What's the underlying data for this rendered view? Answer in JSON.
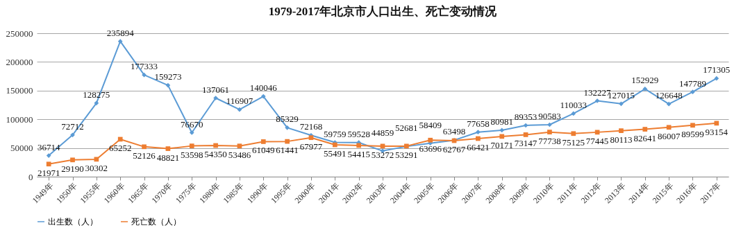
{
  "chart_data": {
    "type": "line",
    "title": "1979-2017年北京市人口出生、死亡变动情况",
    "categories": [
      "1949年",
      "1950年",
      "1955年",
      "1960年",
      "1965年",
      "1970年",
      "1975年",
      "1980年",
      "1985年",
      "1990年",
      "1995年",
      "2000年",
      "2001年",
      "2002年",
      "2003年",
      "2004年",
      "2005年",
      "2006年",
      "2007年",
      "2008年",
      "2009年",
      "2010年",
      "2011年",
      "2012年",
      "2013年",
      "2014年",
      "2015年",
      "2016年",
      "2017年"
    ],
    "series": [
      {
        "name": "出生数（人）",
        "color": "#5b9bd5",
        "marker": "diamond",
        "values": [
          36714,
          72712,
          128275,
          235894,
          177333,
          159273,
          76670,
          137061,
          116907,
          140046,
          85329,
          72168,
          59759,
          59528,
          44859,
          52681,
          58409,
          63498,
          77658,
          80981,
          89353,
          90583,
          110033,
          132227,
          127015,
          152929,
          126648,
          147789,
          171305
        ]
      },
      {
        "name": "死亡数（人）",
        "color": "#ed7d31",
        "marker": "square",
        "values": [
          21971,
          29190,
          30302,
          65252,
          52126,
          48821,
          53598,
          54350,
          53486,
          61049,
          61441,
          67977,
          55491,
          54415,
          53272,
          53291,
          63696,
          62767,
          66421,
          70171,
          73147,
          77738,
          75125,
          77445,
          80113,
          82641,
          86007,
          89599,
          93154
        ]
      }
    ],
    "ylim": [
      0,
      250000
    ],
    "yticks": [
      0,
      50000,
      100000,
      150000,
      200000,
      250000
    ],
    "grid": "y",
    "legend": "bottom",
    "data_labels": true,
    "line_style": "solid"
  }
}
